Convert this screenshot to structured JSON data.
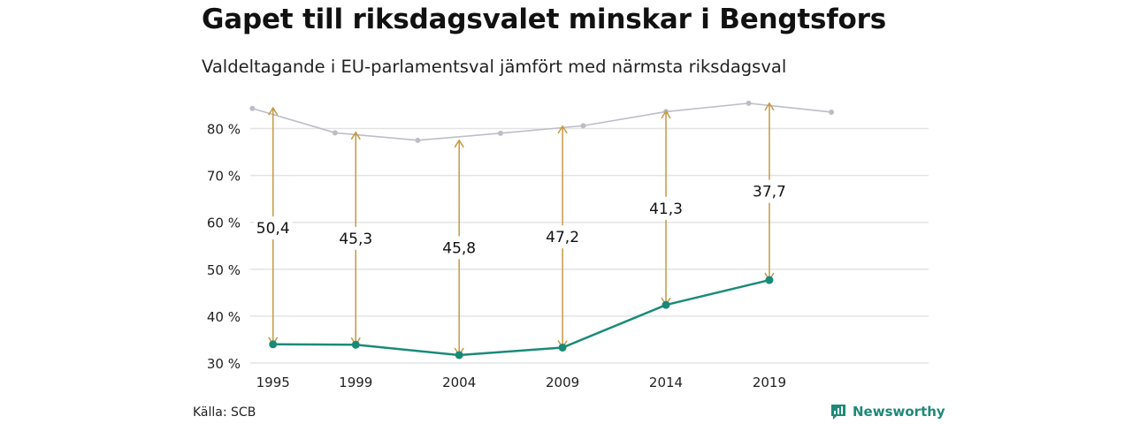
{
  "title": "Gapet till riksdagsvalet minskar i Bengtsfors",
  "subtitle": "Valdeltagande i EU-parlamentsval jämfört med närmsta riksdagsval",
  "source": "Källa: SCB",
  "brand": {
    "name": "Newsworthy",
    "icon": "bar-chart-icon"
  },
  "colors": {
    "eu": "#1a8a78",
    "riksdag": "#bdbdc7",
    "arrow": "#c49a45",
    "grid": "#e3e3e3",
    "text": "#222222"
  },
  "chart_data": {
    "type": "line",
    "x_ticks": [
      1995,
      1999,
      2004,
      2009,
      2014,
      2019
    ],
    "y_ticks": [
      30,
      40,
      50,
      60,
      70,
      80
    ],
    "y_tick_labels": [
      "30 %",
      "40 %",
      "50 %",
      "60 %",
      "70 %",
      "80 %"
    ],
    "xlim": [
      1993.9,
      2026.7
    ],
    "ylim": [
      30,
      85
    ],
    "grid": true,
    "series": [
      {
        "key": "riksdag",
        "x": [
          1994,
          1998,
          2002,
          2006,
          2010,
          2014,
          2018,
          2022
        ],
        "values": [
          84.3,
          79.1,
          77.5,
          79.0,
          80.6,
          83.6,
          85.4,
          83.5
        ]
      },
      {
        "key": "eu",
        "x": [
          1995,
          1999,
          2004,
          2009,
          2014,
          2019
        ],
        "values": [
          34.0,
          33.9,
          31.7,
          33.3,
          42.4,
          47.7
        ]
      }
    ],
    "gaps": [
      {
        "x": 1995,
        "from": 34.0,
        "to": 84.4,
        "label": "50,4",
        "label_y": 58.8
      },
      {
        "x": 1999,
        "from": 33.9,
        "to": 79.2,
        "label": "45,3",
        "label_y": 56.6
      },
      {
        "x": 2004,
        "from": 31.7,
        "to": 77.5,
        "label": "45,8",
        "label_y": 54.6
      },
      {
        "x": 2009,
        "from": 33.3,
        "to": 80.5,
        "label": "47,2",
        "label_y": 56.9
      },
      {
        "x": 2014,
        "from": 42.4,
        "to": 83.7,
        "label": "41,3",
        "label_y": 63.0
      },
      {
        "x": 2019,
        "from": 47.7,
        "to": 85.4,
        "label": "37,7",
        "label_y": 66.6
      }
    ]
  }
}
